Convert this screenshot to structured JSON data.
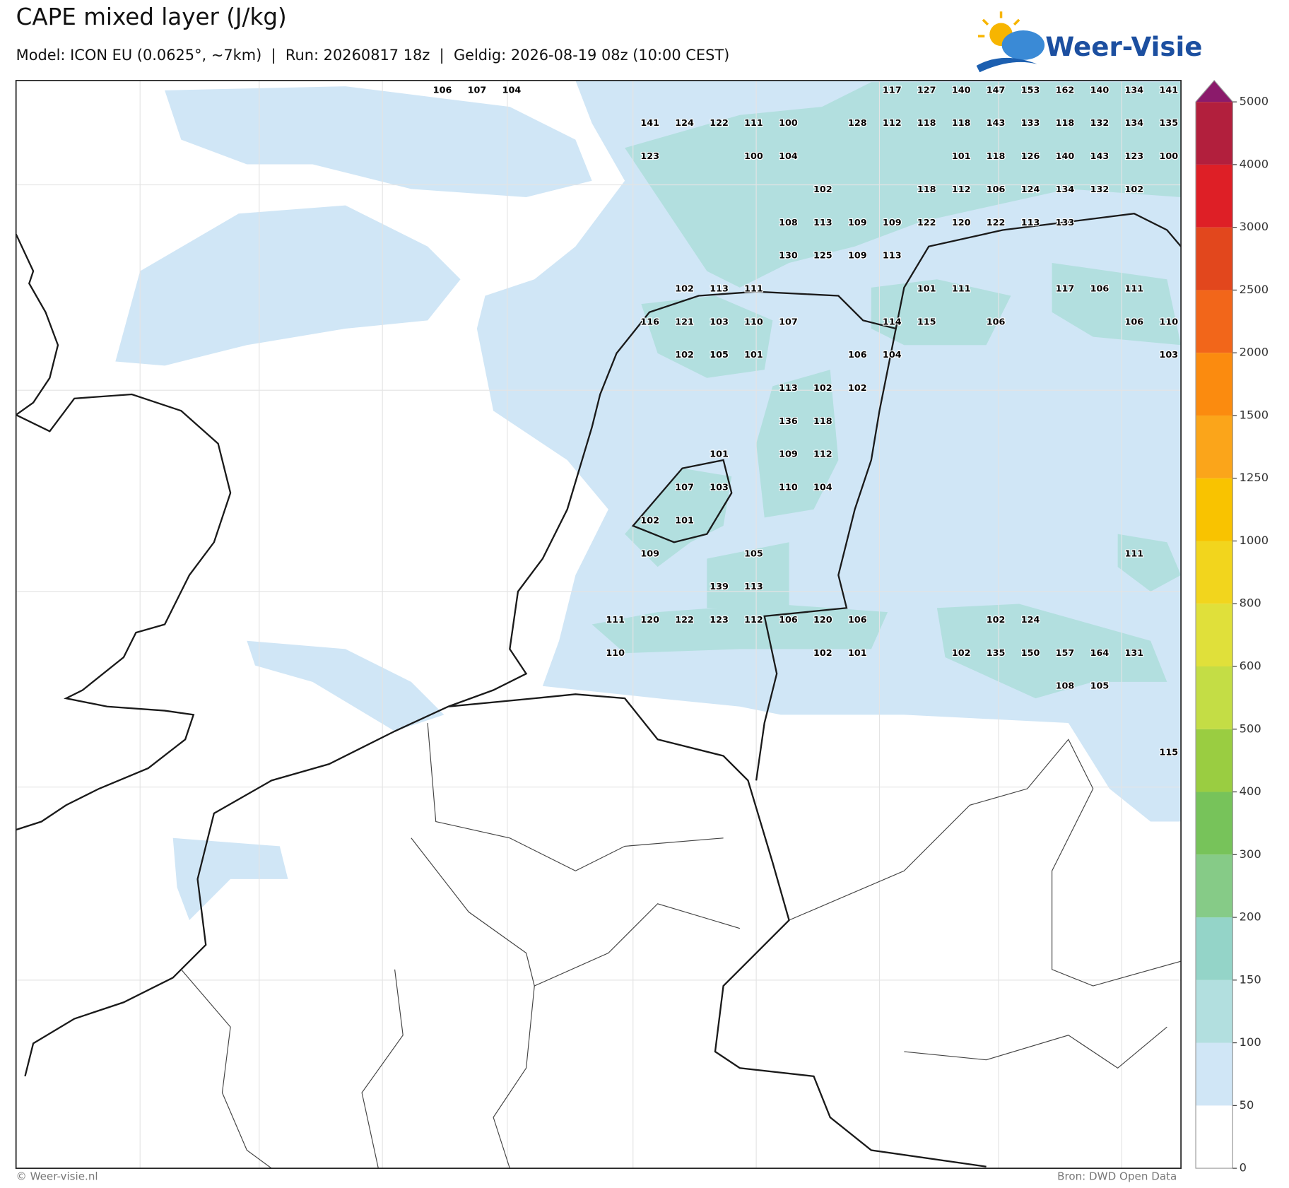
{
  "header": {
    "title": "CAPE mixed layer (J/kg)",
    "subtitle": "Model: ICON EU (0.0625°, ~7km)  |  Run: 20260817 18z  |  Geldig: 2026-08-19 08z (10:00 CEST)",
    "logo": "Weer-Visie"
  },
  "map": {
    "cape_grid": [
      [
        106,
        107,
        104,
        null,
        null,
        null,
        null,
        null,
        null,
        null,
        null,
        null,
        null,
        117,
        127,
        140,
        147,
        153,
        162,
        140,
        134,
        141
      ],
      [
        null,
        null,
        null,
        null,
        null,
        null,
        141,
        124,
        122,
        111,
        100,
        null,
        128,
        112,
        118,
        118,
        143,
        133,
        118,
        132,
        134,
        135
      ],
      [
        null,
        null,
        null,
        null,
        null,
        null,
        123,
        null,
        null,
        100,
        104,
        null,
        null,
        null,
        null,
        101,
        118,
        126,
        140,
        143,
        123,
        100
      ],
      [
        null,
        null,
        null,
        null,
        null,
        null,
        null,
        null,
        null,
        null,
        null,
        102,
        null,
        null,
        118,
        112,
        106,
        124,
        134,
        132,
        102,
        null
      ],
      [
        null,
        null,
        null,
        null,
        null,
        null,
        null,
        null,
        null,
        null,
        108,
        113,
        109,
        109,
        122,
        120,
        122,
        113,
        133,
        null,
        null,
        null
      ],
      [
        null,
        null,
        null,
        null,
        null,
        null,
        null,
        null,
        null,
        null,
        130,
        125,
        109,
        113,
        null,
        null,
        null,
        null,
        null,
        null,
        null,
        null
      ],
      [
        null,
        null,
        null,
        null,
        null,
        null,
        null,
        102,
        113,
        111,
        null,
        null,
        null,
        null,
        101,
        111,
        null,
        null,
        117,
        106,
        111,
        null
      ],
      [
        null,
        null,
        null,
        null,
        null,
        null,
        116,
        121,
        103,
        110,
        107,
        null,
        null,
        114,
        115,
        null,
        106,
        null,
        null,
        null,
        106,
        110
      ],
      [
        null,
        null,
        null,
        null,
        null,
        null,
        null,
        102,
        105,
        101,
        null,
        null,
        106,
        104,
        null,
        null,
        null,
        null,
        null,
        null,
        null,
        103
      ],
      [
        null,
        null,
        null,
        null,
        null,
        null,
        null,
        null,
        null,
        null,
        113,
        102,
        102,
        null,
        null,
        null,
        null,
        null,
        null,
        null,
        null,
        null
      ],
      [
        null,
        null,
        null,
        null,
        null,
        null,
        null,
        null,
        null,
        null,
        136,
        118,
        null,
        null,
        null,
        null,
        null,
        null,
        null,
        null,
        null,
        null
      ],
      [
        null,
        null,
        null,
        null,
        null,
        null,
        null,
        null,
        101,
        null,
        109,
        112,
        null,
        null,
        null,
        null,
        null,
        null,
        null,
        null,
        null,
        null
      ],
      [
        null,
        null,
        null,
        null,
        null,
        null,
        null,
        107,
        103,
        null,
        110,
        104,
        null,
        null,
        null,
        null,
        null,
        null,
        null,
        null,
        null,
        null
      ],
      [
        null,
        null,
        null,
        null,
        null,
        null,
        102,
        101,
        null,
        null,
        null,
        null,
        null,
        null,
        null,
        null,
        null,
        null,
        null,
        null,
        null,
        null
      ],
      [
        null,
        null,
        null,
        null,
        null,
        null,
        109,
        null,
        null,
        105,
        null,
        null,
        null,
        null,
        null,
        null,
        null,
        null,
        null,
        null,
        111,
        null
      ],
      [
        null,
        null,
        null,
        null,
        null,
        null,
        null,
        null,
        139,
        113,
        null,
        null,
        null,
        null,
        null,
        null,
        null,
        null,
        null,
        null,
        null,
        null
      ],
      [
        null,
        null,
        null,
        null,
        null,
        111,
        120,
        122,
        123,
        112,
        106,
        120,
        106,
        null,
        null,
        null,
        102,
        124,
        null,
        null,
        null,
        null
      ],
      [
        null,
        null,
        null,
        null,
        null,
        110,
        null,
        null,
        null,
        null,
        null,
        102,
        101,
        null,
        null,
        102,
        135,
        150,
        157,
        164,
        131,
        null
      ],
      [
        null,
        null,
        null,
        null,
        null,
        null,
        null,
        null,
        null,
        null,
        null,
        null,
        null,
        null,
        null,
        null,
        null,
        null,
        108,
        105,
        null,
        null
      ],
      [
        null,
        null,
        null,
        null,
        null,
        null,
        null,
        null,
        null,
        null,
        null,
        null,
        null,
        null,
        null,
        null,
        null,
        null,
        null,
        null,
        null,
        null
      ],
      [
        null,
        null,
        null,
        null,
        null,
        null,
        null,
        null,
        null,
        null,
        null,
        null,
        null,
        null,
        null,
        null,
        null,
        null,
        null,
        null,
        null,
        115
      ]
    ]
  },
  "colorbar": {
    "ticks": [
      0,
      50,
      100,
      150,
      200,
      300,
      400,
      500,
      600,
      800,
      1000,
      1250,
      1500,
      2000,
      2500,
      3000,
      4000,
      5000
    ],
    "colors": [
      "#ffffff",
      "#d0e6f6",
      "#b2dfdf",
      "#94d4c8",
      "#86cb87",
      "#77c35a",
      "#9acd41",
      "#c4dd45",
      "#e0e03a",
      "#f2d51d",
      "#f9c300",
      "#fba51a",
      "#fb8b0f",
      "#f2661a",
      "#e2471d",
      "#de1f26",
      "#b21f3d"
    ],
    "extend_color": "#8b1a6b"
  },
  "footer": {
    "credit": "© Weer-visie.nl",
    "source": "Bron: DWD Open Data"
  }
}
